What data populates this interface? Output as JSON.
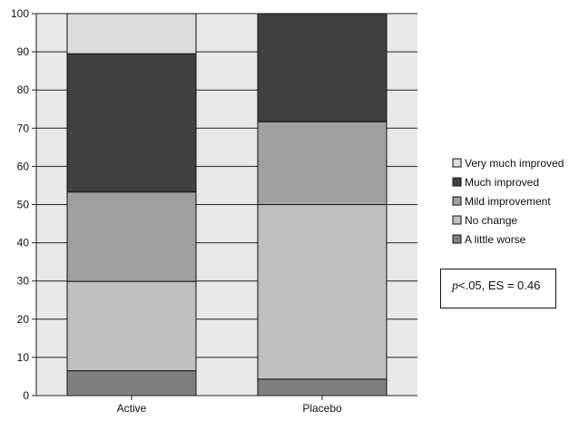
{
  "chart_data": {
    "type": "bar",
    "stacked": true,
    "categories": [
      "Active",
      "Placebo"
    ],
    "series": [
      {
        "name": "A little worse",
        "values": [
          6.5,
          4.3
        ],
        "color": "#7f7f7f"
      },
      {
        "name": "No change",
        "values": [
          23.4,
          45.7
        ],
        "color": "#bfbfbf"
      },
      {
        "name": "Mild improvement",
        "values": [
          23.4,
          21.7
        ],
        "color": "#a0a0a0"
      },
      {
        "name": "Much improved",
        "values": [
          36.2,
          28.3
        ],
        "color": "#404040"
      },
      {
        "name": "Very much improved",
        "values": [
          10.5,
          0.0
        ],
        "color": "#dcdcdc"
      }
    ],
    "ylim": [
      0,
      100
    ],
    "yticks": [
      "0",
      "10",
      "20",
      "30",
      "40",
      "50",
      "60",
      "70",
      "80",
      "90",
      "100"
    ],
    "xlabel": "",
    "ylabel": "",
    "grid": true,
    "plot_background": "#e8e8e8",
    "legend_position": "right",
    "annotation": {
      "p_symbol": "p",
      "text": "<.05, ES = 0.46"
    }
  }
}
